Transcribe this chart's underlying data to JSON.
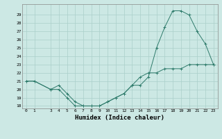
{
  "xlabel": "Humidex (Indice chaleur)",
  "x_series1": [
    0,
    1,
    3,
    4,
    5,
    6,
    7,
    8,
    9,
    10,
    11,
    12,
    13,
    14,
    15,
    16,
    17,
    18,
    19,
    20,
    21,
    22,
    23
  ],
  "y_series1": [
    21,
    21,
    20,
    20,
    19,
    18,
    18,
    18,
    18,
    18.5,
    19,
    19.5,
    20.5,
    21.5,
    22,
    22,
    22.5,
    22.5,
    22.5,
    23,
    23,
    23,
    23
  ],
  "x_series2": [
    0,
    1,
    3,
    4,
    5,
    6,
    7,
    8,
    9,
    10,
    11,
    12,
    13,
    14,
    15,
    16,
    17,
    18,
    19,
    20,
    21,
    22,
    23
  ],
  "y_series2": [
    21,
    21,
    20,
    20.5,
    19.5,
    18.5,
    18,
    18,
    18,
    18.5,
    19,
    19.5,
    20.5,
    20.5,
    21.5,
    25,
    27.5,
    29.5,
    29.5,
    29,
    27,
    25.5,
    23
  ],
  "line_color": "#2d7a6a",
  "bg_color": "#cce8e4",
  "grid_color": "#aacfca",
  "ylim": [
    18,
    30
  ],
  "yticks": [
    18,
    19,
    20,
    21,
    22,
    23,
    24,
    25,
    26,
    27,
    28,
    29
  ],
  "xlim": [
    -0.5,
    23.5
  ],
  "xticks": [
    0,
    1,
    3,
    4,
    5,
    6,
    7,
    8,
    9,
    10,
    11,
    12,
    13,
    14,
    15,
    16,
    17,
    18,
    19,
    20,
    21,
    22,
    23
  ],
  "tick_fontsize": 4.5,
  "label_fontsize": 6.5
}
